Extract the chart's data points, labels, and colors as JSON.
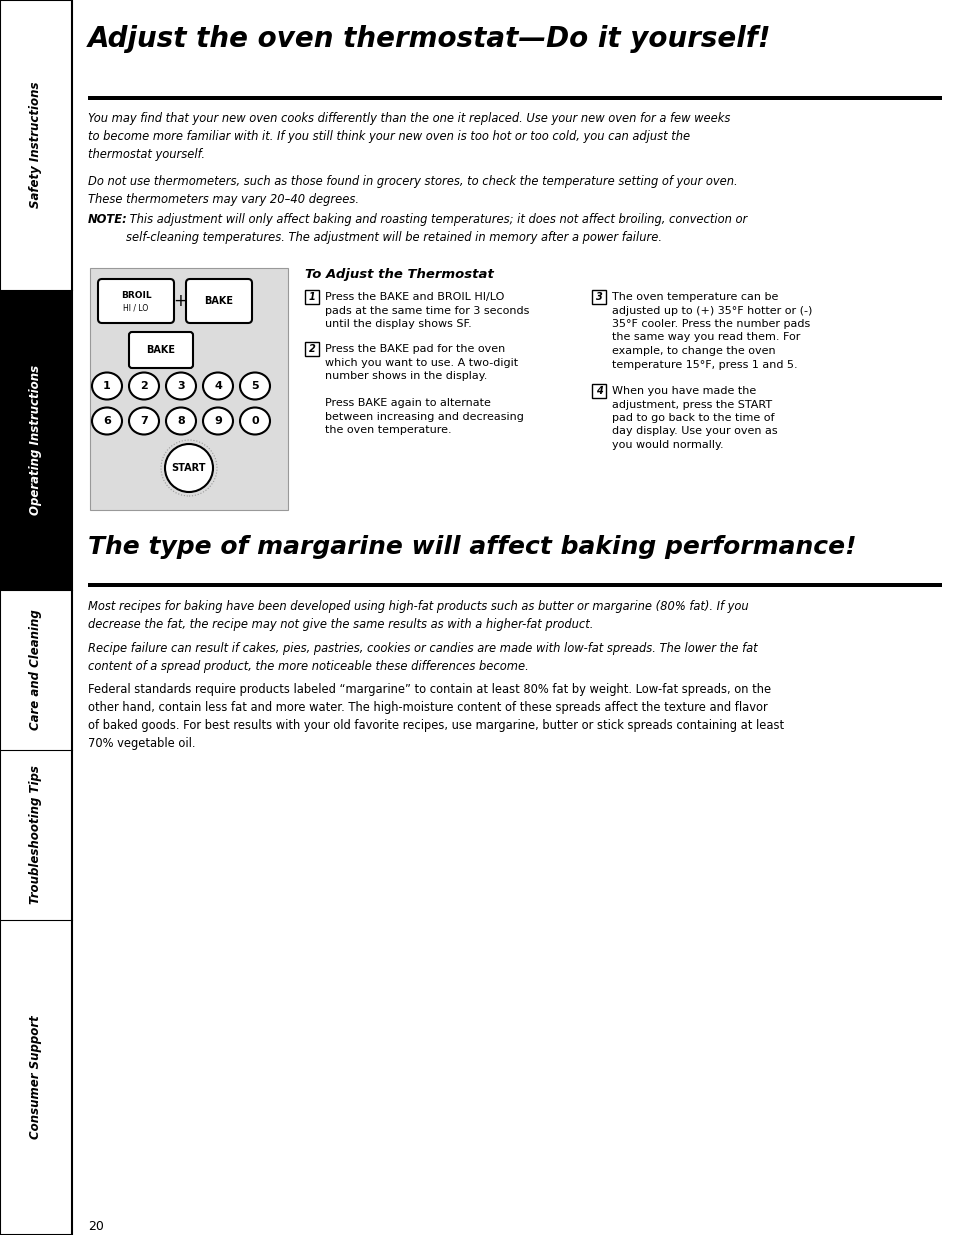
{
  "bg_color": "#ffffff",
  "title1": "Adjust the oven thermostat—Do it yourself!",
  "title2": "The type of margarine will affect baking performance!",
  "page_number": "20",
  "para1": "You may find that your new oven cooks differently than the one it replaced. Use your new oven for a few weeks\nto become more familiar with it. If you still think your new oven is too hot or too cold, you can adjust the\nthermostat yourself.",
  "para2": "Do not use thermometers, such as those found in grocery stores, to check the temperature setting of your oven.\nThese thermometers may vary 20–40 degrees.",
  "note_label": "NOTE:",
  "note_text": " This adjustment will only affect baking and roasting temperatures; it does not affect broiling, convection or\nself-cleaning temperatures. The adjustment will be retained in memory after a power failure.",
  "thermostat_title": "To Adjust the Thermostat",
  "step1_lines": [
    "Press the BAKE and BROIL HI/LO",
    "pads at the same time for 3 seconds",
    "until the display shows SF."
  ],
  "step2_lines": [
    "Press the BAKE pad for the oven",
    "which you want to use. A two-digit",
    "number shows in the display.",
    "",
    "Press BAKE again to alternate",
    "between increasing and decreasing",
    "the oven temperature."
  ],
  "step3_lines": [
    "The oven temperature can be",
    "adjusted up to (+) 35°F hotter or (-)",
    "35°F cooler. Press the number pads",
    "the same way you read them. For",
    "example, to change the oven",
    "temperature 15°F, press 1 and 5."
  ],
  "step4_lines": [
    "When you have made the",
    "adjustment, press the START",
    "pad to go back to the time of",
    "day display. Use your oven as",
    "you would normally."
  ],
  "marg_para1": "Most recipes for baking have been developed using high-fat products such as butter or margarine (80% fat). If you\ndecrease the fat, the recipe may not give the same results as with a higher-fat product.",
  "marg_para2": "Recipe failure can result if cakes, pies, pastries, cookies or candies are made with low-fat spreads. The lower the fat\ncontent of a spread product, the more noticeable these differences become.",
  "marg_para3": "Federal standards require products labeled “margarine” to contain at least 80% fat by weight. Low-fat spreads, on the\nother hand, contain less fat and more water. The high-moisture content of these spreads affect the texture and flavor\nof baked goods. For best results with your old favorite recipes, use margarine, butter or stick spreads containing at least\n70% vegetable oil.",
  "sidebar_sections": [
    {
      "label": "Safety Instructions",
      "ystart": 0,
      "yend": 290,
      "bg": "#ffffff",
      "fg": "#000000"
    },
    {
      "label": "Operating Instructions",
      "ystart": 290,
      "yend": 590,
      "bg": "#000000",
      "fg": "#ffffff"
    },
    {
      "label": "Care and Cleaning",
      "ystart": 590,
      "yend": 750,
      "bg": "#ffffff",
      "fg": "#000000"
    },
    {
      "label": "Troubleshooting Tips",
      "ystart": 750,
      "yend": 920,
      "bg": "#ffffff",
      "fg": "#000000"
    },
    {
      "label": "Consumer Support",
      "ystart": 920,
      "yend": 1235,
      "bg": "#ffffff",
      "fg": "#000000"
    }
  ]
}
